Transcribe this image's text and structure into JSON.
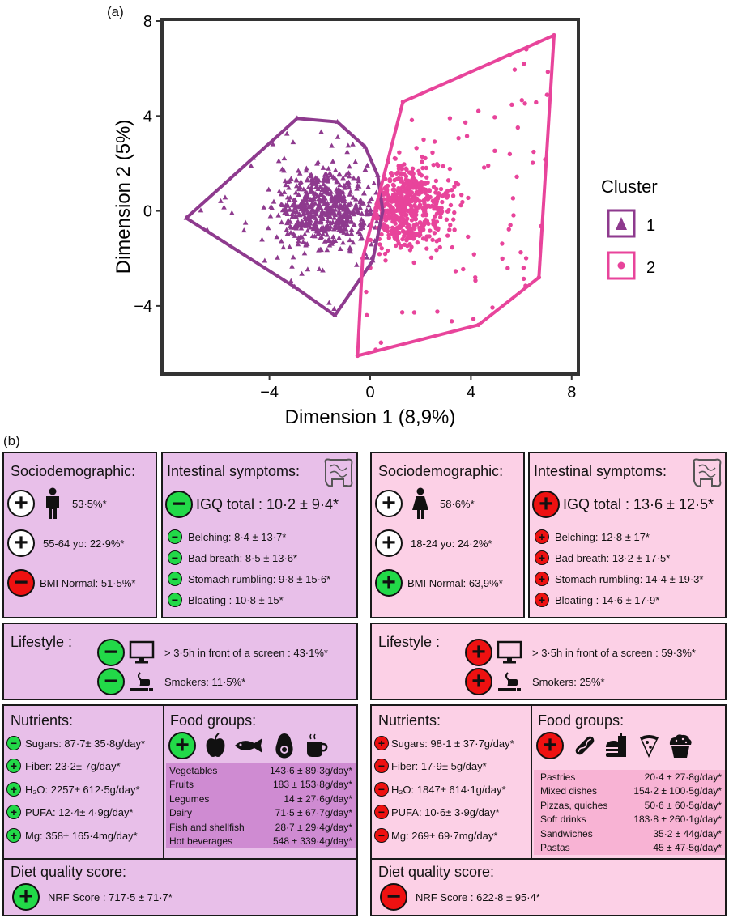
{
  "panel_a_label": "(a)",
  "panel_b_label": "(b)",
  "chart_data": {
    "type": "scatter",
    "xlabel": "Dimension 1 (8,9%)",
    "ylabel": "Dimension 2 (5%)",
    "xlim": [
      -8.2,
      8.2
    ],
    "ylim": [
      -6.8,
      8.0
    ],
    "x_ticks": [
      -4,
      0,
      4,
      8
    ],
    "x_tick_labels": [
      "−4",
      "0",
      "4",
      "8"
    ],
    "y_ticks": [
      -4,
      0,
      4,
      8
    ],
    "y_tick_labels": [
      "−4",
      "0",
      "4",
      "8"
    ],
    "grid": false,
    "legend": {
      "title": "Cluster",
      "position": "right",
      "labels": [
        "1",
        "2"
      ]
    },
    "series": [
      {
        "name": "1",
        "marker": "triangle",
        "color": "#8e3a8e",
        "hull": [
          [
            -7.3,
            -0.3
          ],
          [
            -2.9,
            3.9
          ],
          [
            -1.3,
            3.75
          ],
          [
            -0.2,
            2.7
          ],
          [
            0.3,
            1.5
          ],
          [
            0.5,
            0.0
          ],
          [
            0.1,
            -2.1
          ],
          [
            -1.4,
            -4.4
          ],
          [
            -3.0,
            -3.2
          ]
        ],
        "n_points": 620,
        "center": [
          -1.8,
          0.1
        ],
        "spread": [
          1.3,
          1.1
        ],
        "xrange": [
          -7.0,
          0.5
        ],
        "yrange": [
          -4.3,
          3.8
        ]
      },
      {
        "name": "2",
        "marker": "circle",
        "color": "#e8449b",
        "hull": [
          [
            -0.5,
            -6.1
          ],
          [
            4.3,
            -4.8
          ],
          [
            6.7,
            -2.8
          ],
          [
            7.3,
            7.4
          ],
          [
            1.3,
            4.6
          ],
          [
            -0.3,
            -2.0
          ]
        ],
        "n_points": 620,
        "center": [
          1.4,
          0.2
        ],
        "spread": [
          1.3,
          1.2
        ],
        "xrange": [
          -0.4,
          7.1
        ],
        "yrange": [
          -5.9,
          7.2
        ]
      }
    ]
  },
  "cluster1": {
    "socio": {
      "title": "Sociodemographic:",
      "sex_value": "53·5%*",
      "age_value": "55-64 yo: 22·9%*",
      "bmi_value": "BMI Normal: 51·5%*",
      "signs": [
        "+",
        "+",
        "−"
      ]
    },
    "intestinal": {
      "title": "Intestinal symptoms:",
      "total": "IGQ total : 10·2 ± 9·4*",
      "total_sign": "−",
      "items": [
        {
          "sign": "−",
          "text": "Belching: 8·4 ± 13·7*"
        },
        {
          "sign": "−",
          "text": "Bad breath: 8·5 ± 13·6*"
        },
        {
          "sign": "−",
          "text": "Stomach rumbling: 9·8 ± 15·6*"
        },
        {
          "sign": "−",
          "text": "Bloating : 10·8 ± 15*"
        }
      ]
    },
    "lifestyle": {
      "title": "Lifestyle :",
      "screen": "> 3·5h in front of a screen : 43·1%*",
      "smokers": "Smokers: 11·5%*",
      "signs": [
        "−",
        "−"
      ]
    },
    "nutrients": {
      "title": "Nutrients:",
      "items": [
        {
          "sign": "−",
          "text": "Sugars: 87·7± 35·8g/day*"
        },
        {
          "sign": "+",
          "text": "Fiber: 23·2± 7g/day*"
        },
        {
          "sign": "+",
          "text": "H₂O: 2257± 612·5g/day*"
        },
        {
          "sign": "+",
          "text": "PUFA: 12·4± 4·9g/day*"
        },
        {
          "sign": "+",
          "text": "Mg: 358± 165·4mg/day*"
        }
      ]
    },
    "foods": {
      "title": "Food groups:",
      "sign": "+",
      "rows": [
        [
          "Vegetables",
          "143·6 ± 89·3g/day*"
        ],
        [
          "Fruits",
          "183 ± 153·8g/day*"
        ],
        [
          "Legumes",
          "14 ± 27·6g/day*"
        ],
        [
          "Dairy",
          "71·5 ± 67·7g/day*"
        ],
        [
          "Fish and shellfish",
          "28·7 ± 29·4g/day*"
        ],
        [
          "Hot beverages",
          "548 ± 339·4g/day*"
        ]
      ]
    },
    "diet": {
      "title": "Diet quality score:",
      "sign": "+",
      "text": "NRF Score : 717·5 ± 71·7*"
    }
  },
  "cluster2": {
    "socio": {
      "title": "Sociodemographic:",
      "sex_value": "58·6%*",
      "age_value": "18-24 yo: 24·2%*",
      "bmi_value": "BMI Normal: 63,9%*",
      "signs": [
        "+",
        "+",
        "+"
      ]
    },
    "intestinal": {
      "title": "Intestinal symptoms:",
      "total": "IGQ total : 13·6 ± 12·5*",
      "total_sign": "+",
      "items": [
        {
          "sign": "+",
          "text": "Belching: 12·8 ± 17*"
        },
        {
          "sign": "+",
          "text": "Bad breath: 13·2 ± 17·5*"
        },
        {
          "sign": "+",
          "text": "Stomach rumbling: 14·4 ± 19·3*"
        },
        {
          "sign": "+",
          "text": "Bloating : 14·6 ± 17·9*"
        }
      ]
    },
    "lifestyle": {
      "title": "Lifestyle :",
      "screen": "> 3·5h in front of a screen : 59·3%*",
      "smokers": "Smokers: 25%*",
      "signs": [
        "+",
        "+"
      ]
    },
    "nutrients": {
      "title": "Nutrients:",
      "items": [
        {
          "sign": "+",
          "text": "Sugars: 98·1 ± 37·7g/day*"
        },
        {
          "sign": "−",
          "text": "Fiber: 17·9± 5g/day*"
        },
        {
          "sign": "−",
          "text": "H₂O: 1847± 614·1g/day*"
        },
        {
          "sign": "−",
          "text": "PUFA: 10·6± 3·9g/day*"
        },
        {
          "sign": "−",
          "text": "Mg: 269± 69·7mg/day*"
        }
      ]
    },
    "foods": {
      "title": "Food groups:",
      "sign": "+",
      "rows": [
        [
          "Pastries",
          "20·4 ± 27·8g/day*"
        ],
        [
          "Mixed dishes",
          "154·2 ± 100·5g/day*"
        ],
        [
          "Pizzas, quiches",
          "50·6 ± 60·5g/day*"
        ],
        [
          "Soft drinks",
          "183·8 ± 260·1g/day*"
        ],
        [
          "Sandwiches",
          "35·2 ± 44g/day*"
        ],
        [
          "Pastas",
          "45 ± 47·5g/day*"
        ]
      ]
    },
    "diet": {
      "title": "Diet quality score:",
      "sign": "−",
      "text": "NRF Score : 622·8 ± 95·4*"
    }
  },
  "colors": {
    "cluster1": "#8e3a8e",
    "cluster2": "#e8449b",
    "panel1_bg": "#e8bfe9",
    "panel2_bg": "#fcd0e6",
    "sign_positive": "#22d948",
    "sign_negative": "#ee1111"
  },
  "icons": [
    "male-icon",
    "female-icon",
    "intestine-icon",
    "monitor-icon",
    "smoking-icon",
    "apple-icon",
    "fish-icon",
    "avocado-icon",
    "coffee-cup-icon",
    "hotdog-icon",
    "burger-soda-icon",
    "pizza-slice-icon",
    "muffin-icon"
  ]
}
